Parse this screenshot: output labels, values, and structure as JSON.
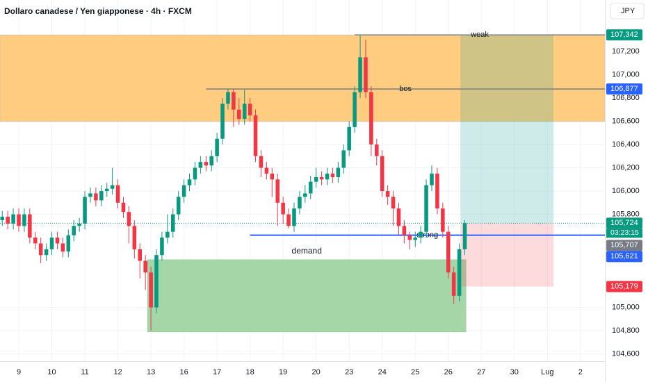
{
  "chart_data": {
    "type": "candlestick",
    "title": "Dollaro canadese / Yen giapponese · 4h · FXCM",
    "currency": "JPY",
    "up_color": "#089981",
    "down_color": "#f23645",
    "xlim": [
      -3.41,
      106.44
    ],
    "ylim": [
      104.538,
      107.642
    ],
    "grid": true,
    "yticks": [
      {
        "value": 107.2,
        "label": "107,200"
      },
      {
        "value": 107.0,
        "label": "107,000"
      },
      {
        "value": 106.8,
        "label": "106,800"
      },
      {
        "value": 106.6,
        "label": "106,600"
      },
      {
        "value": 106.4,
        "label": "106,400"
      },
      {
        "value": 106.2,
        "label": "106,200"
      },
      {
        "value": 106.0,
        "label": "106,000"
      },
      {
        "value": 105.8,
        "label": "105,800"
      },
      {
        "value": 105.0,
        "label": "105,000"
      },
      {
        "value": 104.8,
        "label": "104,800"
      },
      {
        "value": 104.6,
        "label": "104,600"
      }
    ],
    "xticks": [
      {
        "value": 0,
        "label": "9"
      },
      {
        "value": 6,
        "label": "10"
      },
      {
        "value": 12,
        "label": "11"
      },
      {
        "value": 18,
        "label": "12"
      },
      {
        "value": 24,
        "label": "13"
      },
      {
        "value": 30,
        "label": "16"
      },
      {
        "value": 36,
        "label": "17"
      },
      {
        "value": 42,
        "label": "18"
      },
      {
        "value": 48,
        "label": "19"
      },
      {
        "value": 54,
        "label": "20"
      },
      {
        "value": 60,
        "label": "23"
      },
      {
        "value": 66,
        "label": "24"
      },
      {
        "value": 72,
        "label": "25"
      },
      {
        "value": 78,
        "label": "26"
      },
      {
        "value": 84,
        "label": "27"
      },
      {
        "value": 90,
        "label": "30"
      },
      {
        "value": 96,
        "label": "Lug"
      },
      {
        "value": 102,
        "label": "2"
      }
    ],
    "x": [
      -3,
      -2,
      -1,
      0,
      1,
      2,
      3,
      4,
      5,
      6,
      7,
      8,
      9,
      10,
      11,
      12,
      13,
      14,
      15,
      16,
      17,
      18,
      19,
      20,
      21,
      22,
      23,
      24,
      25,
      26,
      27,
      28,
      29,
      30,
      31,
      32,
      33,
      34,
      35,
      36,
      37,
      38,
      39,
      40,
      41,
      42,
      43,
      44,
      45,
      46,
      47,
      48,
      49,
      50,
      51,
      52,
      53,
      54,
      55,
      56,
      57,
      58,
      59,
      60,
      61,
      62,
      63,
      64,
      65,
      66,
      67,
      68,
      69,
      70,
      71,
      72,
      73,
      74,
      75,
      76,
      77,
      78,
      79,
      80,
      81
    ],
    "open": [
      105.75,
      105.78,
      105.72,
      105.8,
      105.7,
      105.8,
      105.6,
      105.55,
      105.45,
      105.5,
      105.6,
      105.55,
      105.48,
      105.62,
      105.7,
      105.72,
      105.95,
      105.98,
      105.92,
      106.0,
      106.02,
      106.05,
      105.9,
      105.82,
      105.7,
      105.5,
      105.4,
      105.3,
      105.0,
      105.45,
      105.6,
      105.65,
      105.8,
      105.95,
      106.05,
      106.1,
      106.2,
      106.25,
      106.22,
      106.3,
      106.45,
      106.75,
      106.85,
      106.7,
      106.62,
      106.75,
      106.65,
      106.3,
      106.2,
      106.15,
      106.1,
      105.9,
      105.8,
      105.7,
      105.85,
      105.95,
      105.98,
      106.08,
      106.12,
      106.1,
      106.15,
      106.12,
      106.2,
      106.35,
      106.55,
      106.85,
      107.15,
      106.85,
      106.4,
      106.3,
      106.0,
      105.95,
      105.85,
      105.7,
      105.62,
      105.58,
      105.6,
      105.65,
      106.05,
      106.15,
      105.85,
      105.65,
      105.3,
      105.1,
      105.5
    ],
    "high": [
      105.83,
      105.83,
      105.85,
      105.85,
      105.85,
      105.85,
      105.65,
      105.6,
      105.55,
      105.65,
      105.65,
      105.6,
      105.67,
      105.75,
      105.77,
      106.0,
      106.03,
      106.03,
      106.05,
      106.07,
      106.2,
      106.1,
      105.95,
      105.87,
      105.75,
      105.55,
      105.45,
      105.35,
      105.5,
      105.65,
      105.8,
      105.85,
      106.0,
      106.1,
      106.15,
      106.25,
      106.3,
      106.3,
      106.35,
      106.5,
      106.8,
      106.88,
      106.88,
      106.8,
      106.87,
      106.8,
      106.7,
      106.35,
      106.25,
      106.2,
      106.15,
      105.95,
      105.85,
      105.9,
      106.0,
      106.05,
      106.13,
      106.2,
      106.17,
      106.2,
      106.2,
      106.25,
      106.4,
      106.6,
      106.9,
      107.34,
      107.3,
      106.9,
      106.45,
      106.35,
      106.05,
      106.0,
      105.9,
      105.75,
      105.65,
      105.65,
      105.7,
      106.1,
      106.22,
      106.2,
      105.9,
      105.7,
      105.35,
      105.55,
      105.75
    ],
    "low": [
      105.7,
      105.67,
      105.67,
      105.65,
      105.65,
      105.55,
      105.5,
      105.38,
      105.4,
      105.45,
      105.5,
      105.43,
      105.43,
      105.57,
      105.65,
      105.67,
      105.9,
      105.87,
      105.87,
      105.95,
      105.97,
      105.85,
      105.77,
      105.55,
      105.42,
      105.25,
      105.15,
      104.8,
      104.95,
      105.4,
      105.55,
      105.6,
      105.75,
      105.9,
      106.0,
      106.05,
      106.15,
      106.17,
      106.17,
      106.25,
      106.4,
      106.7,
      106.55,
      106.57,
      106.57,
      106.6,
      106.25,
      106.12,
      106.1,
      105.95,
      105.7,
      105.72,
      105.68,
      105.65,
      105.8,
      105.9,
      105.93,
      106.03,
      106.05,
      106.05,
      106.07,
      106.07,
      106.15,
      106.3,
      106.5,
      106.8,
      106.8,
      106.3,
      106.22,
      105.95,
      105.88,
      105.7,
      105.62,
      105.55,
      105.5,
      105.52,
      105.55,
      105.6,
      106.0,
      105.8,
      105.6,
      105.25,
      105.03,
      105.05,
      105.45
    ],
    "close": [
      105.78,
      105.72,
      105.8,
      105.7,
      105.8,
      105.6,
      105.55,
      105.45,
      105.5,
      105.6,
      105.55,
      105.48,
      105.62,
      105.7,
      105.72,
      105.95,
      105.98,
      105.92,
      106.0,
      106.02,
      106.05,
      105.9,
      105.82,
      105.7,
      105.5,
      105.4,
      105.3,
      105.0,
      105.45,
      105.6,
      105.65,
      105.8,
      105.95,
      106.05,
      106.1,
      106.2,
      106.25,
      106.22,
      106.3,
      106.45,
      106.75,
      106.85,
      106.7,
      106.62,
      106.75,
      106.65,
      106.3,
      106.2,
      106.15,
      106.1,
      105.9,
      105.8,
      105.7,
      105.85,
      105.95,
      105.98,
      106.08,
      106.12,
      106.1,
      106.15,
      106.12,
      106.2,
      106.35,
      106.55,
      106.85,
      107.15,
      106.85,
      106.4,
      106.3,
      106.0,
      105.95,
      105.85,
      105.7,
      105.62,
      105.58,
      105.6,
      105.65,
      106.05,
      106.15,
      105.85,
      105.65,
      105.3,
      105.1,
      105.5,
      105.724
    ],
    "supply_zone": {
      "y": [
        106.597,
        107.342
      ],
      "color": "#ffcc80"
    },
    "demand_zone": {
      "label": "demand",
      "x": [
        23.4,
        81.2
      ],
      "y": [
        104.79,
        105.41
      ],
      "color": "#a5d6a7"
    },
    "lines": [
      {
        "label": "weak",
        "value": 107.342,
        "x0": 61,
        "color": "#787b86",
        "text_color": "#66a86a"
      },
      {
        "label": "bos",
        "value": 106.877,
        "x0": 34,
        "color": "#787b86",
        "text_color": "#8d8a63"
      },
      {
        "label": "strong",
        "value": 105.621,
        "x0": 42,
        "color": "#2962ff",
        "text_color": "#26a69a"
      }
    ],
    "position": {
      "x": [
        80.2,
        97.1
      ],
      "entry": 105.724,
      "target": 107.342,
      "stop": 105.179
    },
    "last_price": 105.724,
    "countdown": "03:23:15",
    "price_labels": [
      {
        "value": 107.342,
        "label": "107,342",
        "color": "#089981"
      },
      {
        "value": 106.877,
        "label": "106,877",
        "color": "#2962ff"
      },
      {
        "value": 105.724,
        "label": "105,724",
        "color": "#089981"
      },
      {
        "value": 105.707,
        "label": "105,707",
        "color": "#787b86"
      },
      {
        "value": 105.621,
        "label": "105,621",
        "color": "#2962ff"
      },
      {
        "value": 105.179,
        "label": "105,179",
        "color": "#f23645"
      }
    ]
  }
}
